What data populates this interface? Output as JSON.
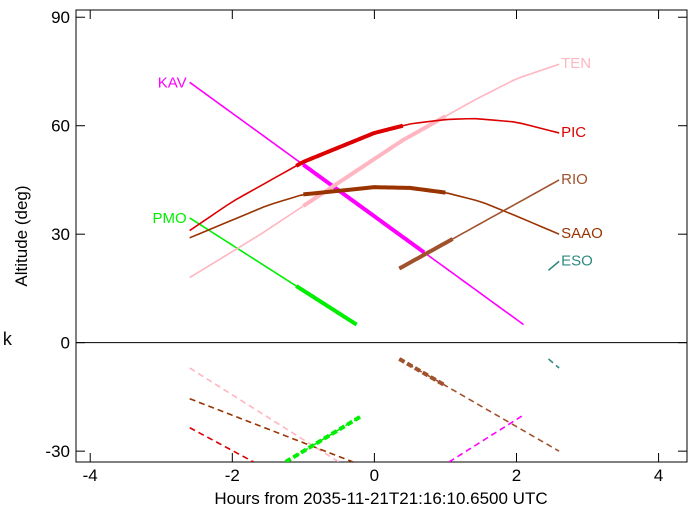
{
  "chart_data": {
    "type": "line",
    "xlabel": "Hours from 2035-11-21T21:16:10.6500 UTC",
    "ylabel": "Altitude (deg)",
    "xlim": [
      -4.2,
      4.4
    ],
    "ylim": [
      -33,
      92
    ],
    "xticks": [
      -4,
      -2,
      0,
      2,
      4
    ],
    "xtick_labels": [
      "-4",
      "-2",
      "0",
      "2",
      "4"
    ],
    "yticks": [
      -30,
      0,
      30,
      60,
      90
    ],
    "ytick_labels": [
      "-30",
      "0",
      "30",
      "60",
      "90"
    ],
    "zero_line": true,
    "grid": false,
    "stray_text": "k",
    "series": [
      {
        "name": "KAV",
        "color": "#ff00ff",
        "x": [
          -2.6,
          2.1
        ],
        "y": [
          72,
          5
        ],
        "bold": [
          [
            -1.0,
            0.7
          ]
        ],
        "dashed": false
      },
      {
        "name": "PMO",
        "color": "#00ee00",
        "x": [
          -2.6,
          -0.25
        ],
        "y": [
          34.5,
          5
        ],
        "bold": [
          [
            -1.1,
            -0.25
          ]
        ],
        "dashed": false
      },
      {
        "name": "TEN",
        "color": "#ffb6c1",
        "x": [
          -2.6,
          -1.6,
          -0.6,
          0.4,
          1.4,
          2.0,
          2.6
        ],
        "y": [
          18,
          30,
          43,
          56,
          67,
          73,
          77
        ],
        "bold": [
          [
            -1.0,
            1.0
          ]
        ],
        "dashed": false
      },
      {
        "name": "PIC",
        "color": "#dd0000",
        "x": [
          -2.6,
          -2.0,
          -1.0,
          0.0,
          0.5,
          1.0,
          1.4,
          2.0,
          2.6
        ],
        "y": [
          31,
          39,
          50,
          58,
          60.5,
          61.7,
          62,
          61,
          58
        ],
        "bold": [
          [
            -1.1,
            0.4
          ]
        ],
        "dashed": false
      },
      {
        "name": "SAAO",
        "color": "#993300",
        "x": [
          -2.6,
          -1.5,
          -1.0,
          0.0,
          0.5,
          1.0,
          1.5,
          2.0,
          2.6
        ],
        "y": [
          29,
          38,
          41,
          43,
          42.8,
          41.5,
          39,
          35,
          30
        ],
        "bold": [
          [
            -1.0,
            1.0
          ]
        ],
        "dashed": false
      },
      {
        "name": "RIO",
        "color": "#a0522d",
        "x": [
          0.35,
          2.6
        ],
        "y": [
          20.5,
          45
        ],
        "bold": [
          [
            0.35,
            1.1
          ]
        ],
        "dashed": false
      },
      {
        "name": "ESO",
        "color": "#2e8b80",
        "x": [
          2.45,
          2.6
        ],
        "y": [
          20,
          22.5
        ],
        "bold": [],
        "dashed": false
      },
      {
        "name": "",
        "color": "#ffb6c1",
        "x": [
          -2.6,
          -0.5
        ],
        "y": [
          -7,
          -33
        ],
        "bold": [],
        "dashed": true
      },
      {
        "name": "",
        "color": "#993300",
        "x": [
          -2.6,
          -0.3
        ],
        "y": [
          -15.5,
          -33
        ],
        "bold": [],
        "dashed": true
      },
      {
        "name": "",
        "color": "#dd0000",
        "x": [
          -2.6,
          -1.7
        ],
        "y": [
          -23.5,
          -33
        ],
        "bold": [],
        "dashed": true
      },
      {
        "name": "",
        "color": "#00ee00",
        "x": [
          -1.25,
          -0.2
        ],
        "y": [
          -33,
          -20.5
        ],
        "bold": [
          [
            -1.25,
            -0.2
          ]
        ],
        "dashed": true
      },
      {
        "name": "",
        "color": "#a0522d",
        "x": [
          0.35,
          2.6
        ],
        "y": [
          -4.5,
          -30
        ],
        "bold": [
          [
            0.35,
            1.0
          ]
        ],
        "dashed": true
      },
      {
        "name": "",
        "color": "#ff00ff",
        "x": [
          1.05,
          2.1
        ],
        "y": [
          -33,
          -20
        ],
        "bold": [],
        "dashed": true
      },
      {
        "name": "",
        "color": "#2e8b80",
        "x": [
          2.45,
          2.6
        ],
        "y": [
          -4.5,
          -7
        ],
        "bold": [],
        "dashed": true
      }
    ]
  }
}
